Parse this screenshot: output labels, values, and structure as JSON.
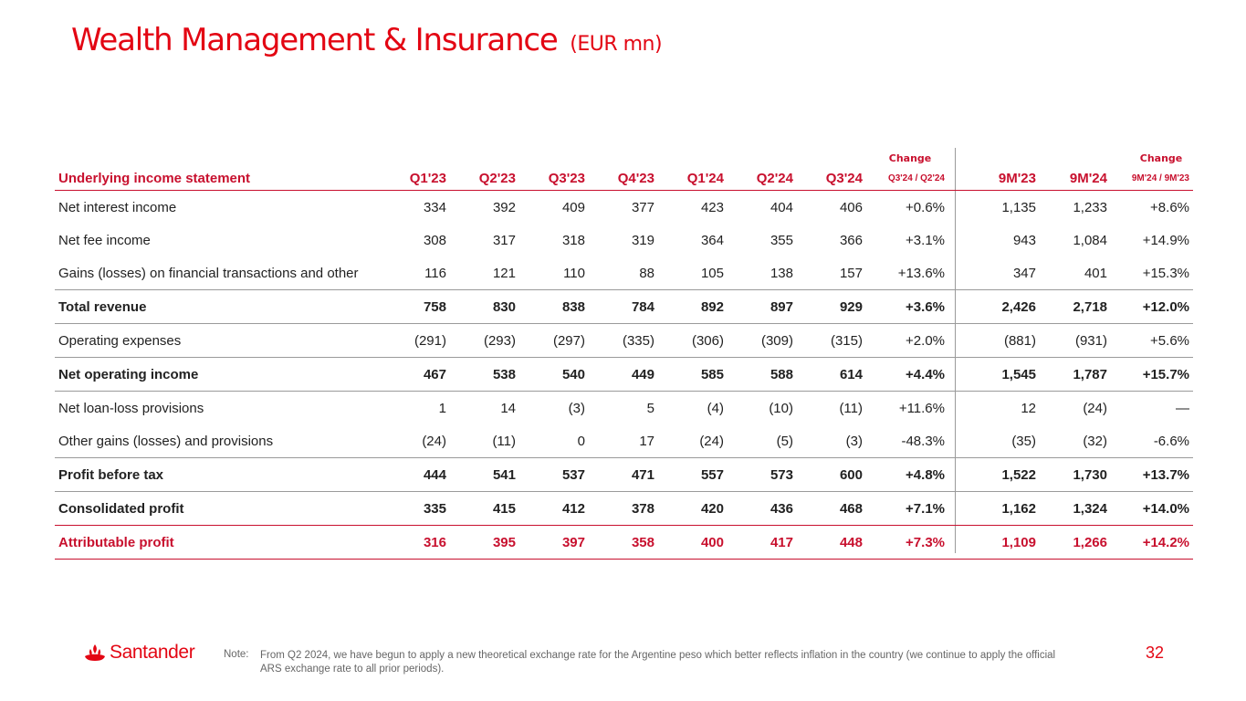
{
  "title": "Wealth Management & Insurance",
  "subtitle": "(EUR mn)",
  "change_header_1": "Change",
  "change_header_2": "Change",
  "table": {
    "columns": [
      "Underlying income statement",
      "Q1'23",
      "Q2'23",
      "Q3'23",
      "Q4'23",
      "Q1'24",
      "Q2'24",
      "Q3'24",
      "Q3'24 / Q2'24",
      "9M'23",
      "9M'24",
      "9M'24 / 9M'23"
    ],
    "rows": [
      {
        "label": "Net interest income",
        "values": [
          "334",
          "392",
          "409",
          "377",
          "423",
          "404",
          "406",
          "+0.6%",
          "1,135",
          "1,233",
          "+8.6%"
        ]
      },
      {
        "label": "Net fee income",
        "values": [
          "308",
          "317",
          "318",
          "319",
          "364",
          "355",
          "366",
          "+3.1%",
          "943",
          "1,084",
          "+14.9%"
        ]
      },
      {
        "label": "Gains (losses) on financial transactions and other",
        "values": [
          "116",
          "121",
          "110",
          "88",
          "105",
          "138",
          "157",
          "+13.6%",
          "347",
          "401",
          "+15.3%"
        ]
      },
      {
        "label": "Total revenue",
        "values": [
          "758",
          "830",
          "838",
          "784",
          "892",
          "897",
          "929",
          "+3.6%",
          "2,426",
          "2,718",
          "+12.0%"
        ]
      },
      {
        "label": "Operating expenses",
        "values": [
          "(291)",
          "(293)",
          "(297)",
          "(335)",
          "(306)",
          "(309)",
          "(315)",
          "+2.0%",
          "(881)",
          "(931)",
          "+5.6%"
        ]
      },
      {
        "label": "Net operating income",
        "values": [
          "467",
          "538",
          "540",
          "449",
          "585",
          "588",
          "614",
          "+4.4%",
          "1,545",
          "1,787",
          "+15.7%"
        ]
      },
      {
        "label": "Net loan-loss provisions",
        "values": [
          "1",
          "14",
          "(3)",
          "5",
          "(4)",
          "(10)",
          "(11)",
          "+11.6%",
          "12",
          "(24)",
          "—"
        ]
      },
      {
        "label": "Other gains (losses) and provisions",
        "values": [
          "(24)",
          "(11)",
          "0",
          "17",
          "(24)",
          "(5)",
          "(3)",
          "-48.3%",
          "(35)",
          "(32)",
          "-6.6%"
        ]
      },
      {
        "label": "Profit before tax",
        "values": [
          "444",
          "541",
          "537",
          "471",
          "557",
          "573",
          "600",
          "+4.8%",
          "1,522",
          "1,730",
          "+13.7%"
        ]
      },
      {
        "label": "Consolidated profit",
        "values": [
          "335",
          "415",
          "412",
          "378",
          "420",
          "436",
          "468",
          "+7.1%",
          "1,162",
          "1,324",
          "+14.0%"
        ]
      },
      {
        "label": "Attributable profit",
        "values": [
          "316",
          "395",
          "397",
          "358",
          "400",
          "417",
          "448",
          "+7.3%",
          "1,109",
          "1,266",
          "+14.2%"
        ]
      }
    ]
  },
  "brand": "Santander",
  "brand_icon": "santander-flame-icon",
  "note_label": "Note:",
  "note_text": "From Q2 2024, we have begun to apply a new theoretical exchange rate for the Argentine peso which better reflects inflation in the country (we continue to apply the official ARS exchange rate to all prior periods).",
  "page_number": "32",
  "colors": {
    "brand_red": "#e30613",
    "header_red": "#c8102e",
    "divider_grey": "#9a9a9a"
  }
}
